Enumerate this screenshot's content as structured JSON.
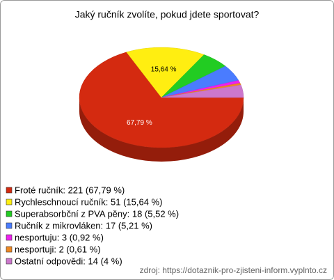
{
  "chart_data": {
    "type": "pie",
    "title": "Jaký ručník zvolíte, pokud jdete sportovat?",
    "categories": [
      "Froté ručník: 221 (67,79 %)",
      "Rychleschnoucí ručník: 51 (15,64 %)",
      "Superabsorbční z PVA pěny: 18 (5,52 %)",
      "Ručník z mikrovláken: 17 (5,21 %)",
      "nesportuju: 3 (0,92 %)",
      "nesportuji: 2 (0,61 %)",
      "Ostatní odpovědi: 14 (4 %)"
    ],
    "values": [
      67.79,
      15.64,
      5.52,
      5.21,
      0.92,
      0.61,
      4
    ],
    "value_labels": [
      "67,79 %",
      "15,64 %",
      null,
      null,
      null,
      null,
      null
    ],
    "colors": [
      "#d42a10",
      "#ffee11",
      "#22cc22",
      "#4a7cff",
      "#ee22ee",
      "#ee8822",
      "#cc77cc"
    ],
    "source": "zdroj: https://dotaznik-pro-zjisteni-inform.vyplnto.cz"
  }
}
